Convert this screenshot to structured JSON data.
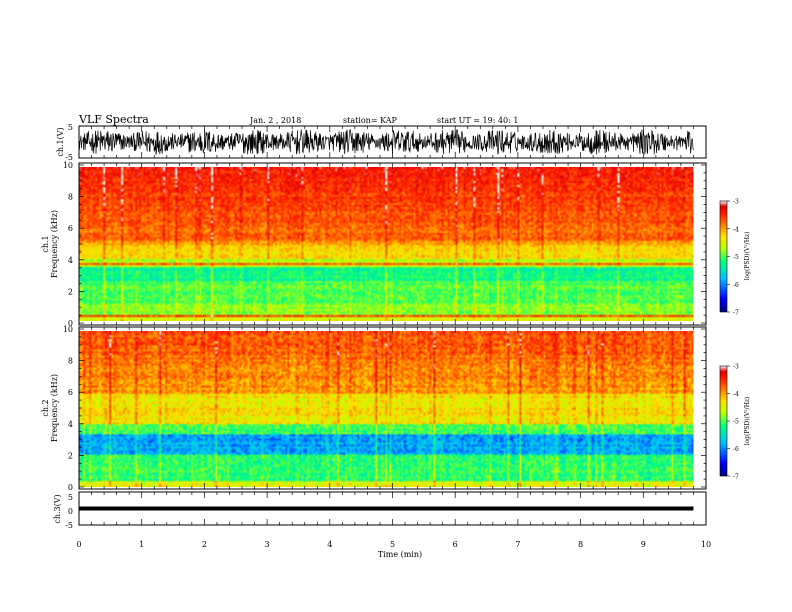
{
  "header": {
    "title": "VLF Spectra",
    "date": "Jan. 2 , 2018",
    "station": "station= KAP",
    "start": "start UT =  19: 40: 1"
  },
  "chart_data": [
    {
      "type": "line",
      "ylabel": "ch.1(V)",
      "ylim": [
        -5,
        5
      ],
      "yticks": [
        "5",
        "-5"
      ],
      "description_series": [
        {
          "values_range": [
            -4,
            4
          ]
        }
      ]
    },
    {
      "type": "heatmap",
      "ylabel": "ch.1\nFrequency (kHz)",
      "ylabel_lines": [
        "ch.1",
        "Frequency (kHz)"
      ],
      "ylim": [
        0,
        10
      ],
      "yticks": [
        "0",
        "2",
        "4",
        "6",
        "8",
        "10"
      ],
      "colorbar": {
        "label": "log(PSD)(V²/Hz)",
        "ticks": [
          "-3",
          "-4",
          "-5",
          "-6",
          "-7"
        ],
        "range": [
          -7,
          -3
        ]
      }
    },
    {
      "type": "heatmap",
      "ylabel": "ch.2\nFrequency (kHz)",
      "ylabel_lines": [
        "ch.2",
        "Frequency (kHz)"
      ],
      "ylim": [
        0,
        10
      ],
      "yticks": [
        "0",
        "2",
        "4",
        "6",
        "8",
        "10"
      ],
      "colorbar": {
        "label": "log(PSD)(V²/Hz)",
        "ticks": [
          "-3",
          "-4",
          "-5",
          "-6",
          "-7"
        ],
        "range": [
          -7,
          -3
        ]
      }
    },
    {
      "type": "line",
      "ylabel": "ch.3(V)",
      "ylim": [
        -5,
        5
      ],
      "yticks": [
        "5",
        "0",
        "-5"
      ],
      "series": [
        {
          "x": [
            0,
            9.8
          ],
          "values": [
            0,
            0
          ]
        }
      ]
    }
  ],
  "xaxis": {
    "label": "Time (min)",
    "ticks": [
      "0",
      "1",
      "2",
      "3",
      "4",
      "5",
      "6",
      "7",
      "8",
      "9",
      "10"
    ],
    "xlim": [
      0,
      10
    ],
    "data_end": 9.8
  },
  "colors": {
    "trace": "#000000",
    "colormap": [
      "#00007f",
      "#0000ff",
      "#00bfff",
      "#00ff80",
      "#bfff00",
      "#ffe000",
      "#ff8000",
      "#ff2000",
      "#e00000",
      "#ffffff"
    ]
  }
}
